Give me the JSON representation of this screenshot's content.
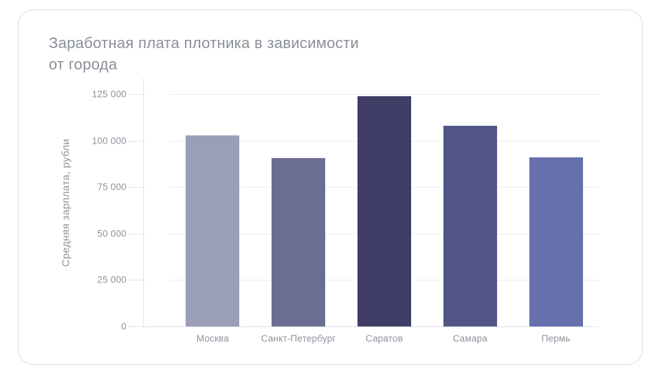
{
  "header": {
    "title_line1": "Заработная плата плотника в зависимости",
    "title_line2": "от города"
  },
  "colors": {
    "background": "#ffffff",
    "card_border": "#dcdee3",
    "title_text": "#8a8f97",
    "axis_text": "#8d929b",
    "axis_line": "#e2e3e8",
    "gridline": "#eaebf0"
  },
  "chart_data": {
    "type": "bar",
    "title": "Заработная плата плотника в зависимости от города",
    "xlabel": "",
    "ylabel": "Средняя зарплата, рубли",
    "categories": [
      "Москва",
      "Санкт-Петербург",
      "Саратов",
      "Самара",
      "Пермь"
    ],
    "values": [
      103000,
      90500,
      124000,
      108000,
      91000
    ],
    "bar_colors": [
      "#9b9eb8",
      "#6b6e90",
      "#3f3d66",
      "#525586",
      "#6670ac"
    ],
    "ylim": [
      0,
      133500
    ],
    "yticks": [
      0,
      25000,
      50000,
      75000,
      100000,
      125000
    ],
    "ytick_labels": [
      "0",
      "25 000",
      "50 000",
      "75 000",
      "100 000",
      "125 000"
    ],
    "grid": true,
    "legend": false
  }
}
